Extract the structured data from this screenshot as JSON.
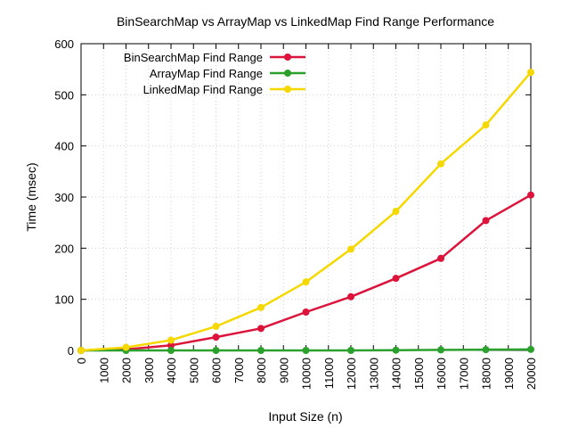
{
  "chart_data": {
    "type": "line",
    "title": "BinSearchMap vs ArrayMap vs LinkedMap Find Range Performance",
    "xlabel": "Input Size (n)",
    "ylabel": "Time (msec)",
    "xlim": [
      0,
      20000
    ],
    "ylim": [
      0,
      600
    ],
    "xticks": [
      0,
      1000,
      2000,
      3000,
      4000,
      5000,
      6000,
      7000,
      8000,
      9000,
      10000,
      11000,
      12000,
      13000,
      14000,
      15000,
      16000,
      17000,
      18000,
      19000,
      20000
    ],
    "yticks": [
      0,
      100,
      200,
      300,
      400,
      500,
      600
    ],
    "grid": true,
    "legend_position": "top-left",
    "x": [
      0,
      2000,
      4000,
      6000,
      8000,
      10000,
      12000,
      14000,
      16000,
      18000,
      20000
    ],
    "series": [
      {
        "name": "BinSearchMap Find Range",
        "color": "#dc143c",
        "values": [
          0,
          2,
          10,
          26,
          43,
          75,
          105,
          141,
          180,
          254,
          304
        ]
      },
      {
        "name": "ArrayMap Find Range",
        "color": "#2ca02c",
        "values": [
          0,
          0,
          0,
          0,
          0,
          0,
          0,
          0.5,
          1,
          1.5,
          2
        ]
      },
      {
        "name": "LinkedMap Find Range",
        "color": "#f5d800",
        "values": [
          0,
          6,
          20,
          47,
          84,
          134,
          198,
          272,
          365,
          441,
          544
        ]
      }
    ]
  }
}
